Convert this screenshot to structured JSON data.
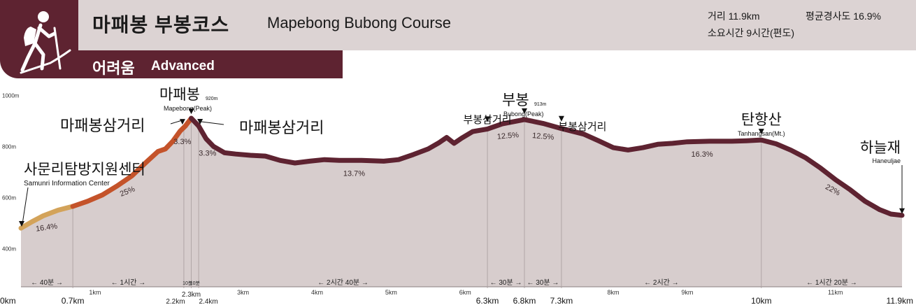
{
  "header": {
    "title_ko": "마패봉  부봉코스",
    "title_en": "Mapebong  Bubong Course",
    "difficulty_ko": "어려움",
    "difficulty_en": "Advanced",
    "distance": "거리 11.9km",
    "avg_slope": "평균경사도 16.9%",
    "duration": "소요시간 9시간(편도)",
    "icon": "hiker-icon"
  },
  "colors": {
    "band": "#dcd3d3",
    "accent": "#5e2331",
    "fill": "#d7cdcd",
    "easy": "#d3a35a",
    "medium": "#c4532a",
    "hard": "#5e2331"
  },
  "chart_data": {
    "type": "area",
    "title": "",
    "xlabel": "",
    "ylabel": "",
    "xlim": [
      0,
      11.9
    ],
    "ylim": [
      250,
      1050
    ],
    "y_ticks": [
      {
        "value": 400,
        "label": "400m"
      },
      {
        "value": 600,
        "label": "600m"
      },
      {
        "value": 800,
        "label": "800m"
      },
      {
        "value": 1000,
        "label": "1000m"
      }
    ],
    "x_ticks_small": [
      {
        "value": 1,
        "label": "1km"
      },
      {
        "value": 3,
        "label": "3km"
      },
      {
        "value": 4,
        "label": "4km"
      },
      {
        "value": 5,
        "label": "5km"
      },
      {
        "value": 6,
        "label": "6km"
      },
      {
        "value": 8,
        "label": "8km"
      },
      {
        "value": 9,
        "label": "9km"
      },
      {
        "value": 11,
        "label": "11km"
      }
    ],
    "x_ticks_large": [
      {
        "value": 0,
        "label": "0km"
      },
      {
        "value": 0.7,
        "label": "0.7km"
      },
      {
        "value": 6.3,
        "label": "6.3km"
      },
      {
        "value": 6.8,
        "label": "6.8km"
      },
      {
        "value": 7.3,
        "label": "7.3km"
      },
      {
        "value": 10,
        "label": "10km"
      },
      {
        "value": 11.9,
        "label": "11.9km"
      }
    ],
    "x_ticks_mid": [
      {
        "value": 2.2,
        "label": "2.2km"
      },
      {
        "value": 2.3,
        "label": "2.3km"
      },
      {
        "value": 2.4,
        "label": "2.4km"
      }
    ],
    "profile": [
      [
        0,
        480
      ],
      [
        0.15,
        505
      ],
      [
        0.3,
        528
      ],
      [
        0.5,
        550
      ],
      [
        0.7,
        565
      ],
      [
        0.9,
        585
      ],
      [
        1.1,
        610
      ],
      [
        1.3,
        645
      ],
      [
        1.5,
        685
      ],
      [
        1.7,
        740
      ],
      [
        1.85,
        780
      ],
      [
        1.95,
        790
      ],
      [
        2.05,
        820
      ],
      [
        2.15,
        860
      ],
      [
        2.22,
        880
      ],
      [
        2.3,
        910
      ],
      [
        2.4,
        880
      ],
      [
        2.5,
        830
      ],
      [
        2.6,
        800
      ],
      [
        2.75,
        775
      ],
      [
        2.9,
        770
      ],
      [
        3.1,
        765
      ],
      [
        3.3,
        762
      ],
      [
        3.5,
        745
      ],
      [
        3.7,
        735
      ],
      [
        3.9,
        742
      ],
      [
        4.1,
        748
      ],
      [
        4.3,
        745
      ],
      [
        4.6,
        745
      ],
      [
        4.9,
        742
      ],
      [
        5.1,
        748
      ],
      [
        5.3,
        768
      ],
      [
        5.5,
        790
      ],
      [
        5.65,
        815
      ],
      [
        5.75,
        835
      ],
      [
        5.85,
        812
      ],
      [
        5.95,
        832
      ],
      [
        6.1,
        858
      ],
      [
        6.3,
        868
      ],
      [
        6.5,
        888
      ],
      [
        6.8,
        905
      ],
      [
        7.05,
        890
      ],
      [
        7.3,
        870
      ],
      [
        7.6,
        848
      ],
      [
        7.8,
        822
      ],
      [
        8.0,
        795
      ],
      [
        8.2,
        786
      ],
      [
        8.4,
        795
      ],
      [
        8.6,
        808
      ],
      [
        8.8,
        812
      ],
      [
        9.0,
        818
      ],
      [
        9.3,
        820
      ],
      [
        9.6,
        820
      ],
      [
        9.8,
        822
      ],
      [
        10.0,
        825
      ],
      [
        10.2,
        810
      ],
      [
        10.4,
        785
      ],
      [
        10.6,
        755
      ],
      [
        10.8,
        715
      ],
      [
        11.0,
        670
      ],
      [
        11.2,
        630
      ],
      [
        11.4,
        585
      ],
      [
        11.6,
        552
      ],
      [
        11.75,
        535
      ],
      [
        11.9,
        530
      ]
    ],
    "segments": [
      {
        "from": 0,
        "to": 0.7,
        "difficulty": "easy"
      },
      {
        "from": 0.7,
        "to": 2.3,
        "difficulty": "medium"
      },
      {
        "from": 2.3,
        "to": 11.9,
        "difficulty": "hard"
      }
    ],
    "slopes": [
      {
        "x": 0.35,
        "label": "16.4%",
        "rot": -8
      },
      {
        "x": 1.45,
        "label": "25%",
        "rot": -22
      },
      {
        "x": 2.18,
        "label": "3.3%",
        "rot": 0
      },
      {
        "x": 2.52,
        "label": "3.3%",
        "rot": 0
      },
      {
        "x": 4.5,
        "label": "13.7%",
        "rot": 0
      },
      {
        "x": 6.58,
        "label": "12.5%",
        "rot": -5
      },
      {
        "x": 7.05,
        "label": "12.5%",
        "rot": 5
      },
      {
        "x": 9.2,
        "label": "16.3%",
        "rot": 0
      },
      {
        "x": 10.95,
        "label": "22%",
        "rot": 28
      }
    ],
    "dividers": [
      0.7,
      2.2,
      2.3,
      2.4,
      6.3,
      6.8,
      7.3,
      10.0
    ],
    "durations": [
      {
        "from": 0,
        "to": 0.7,
        "label": "← 40분 →"
      },
      {
        "from": 0.7,
        "to": 2.2,
        "label": "← 1시간 →"
      },
      {
        "from": 2.2,
        "to": 2.3,
        "label": "10분"
      },
      {
        "from": 2.3,
        "to": 2.4,
        "label": "10분"
      },
      {
        "from": 2.4,
        "to": 6.3,
        "label": "← 2시간 40분 →"
      },
      {
        "from": 6.3,
        "to": 6.8,
        "label": "← 30분 →"
      },
      {
        "from": 6.8,
        "to": 7.3,
        "label": "← 30분 →"
      },
      {
        "from": 7.3,
        "to": 10.0,
        "label": "← 2시간 →"
      },
      {
        "from": 10.0,
        "to": 11.9,
        "label": "← 1시간 20분 →"
      }
    ],
    "annotations": [
      {
        "x": 0,
        "ko": "사문리탐방지원센터",
        "en": "Samunri Information Center",
        "elev": ""
      },
      {
        "x": 2.2,
        "ko": "마패봉삼거리",
        "en": "",
        "elev": ""
      },
      {
        "x": 2.3,
        "ko": "마패봉",
        "en": "Mapebong(Peak)",
        "elev": "920m"
      },
      {
        "x": 2.4,
        "ko": "마패봉삼거리",
        "en": "",
        "elev": ""
      },
      {
        "x": 6.3,
        "ko": "부봉삼거리",
        "en": "",
        "elev": ""
      },
      {
        "x": 6.8,
        "ko": "부봉",
        "en": "Bubong(Peak)",
        "elev": "913m"
      },
      {
        "x": 7.3,
        "ko": "부봉삼거리",
        "en": "",
        "elev": ""
      },
      {
        "x": 10.0,
        "ko": "탄항산",
        "en": "Tanhangsan(Mt.)",
        "elev": ""
      },
      {
        "x": 11.9,
        "ko": "하늘재",
        "en": "Haneuljae",
        "elev": ""
      }
    ]
  }
}
